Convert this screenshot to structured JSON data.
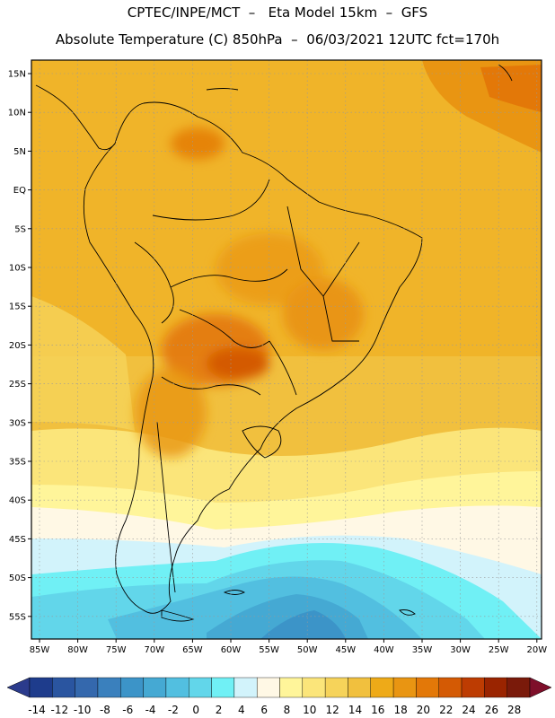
{
  "title_line1": "CPTEC/INPE/MCT  –   Eta Model 15km  –  GFS",
  "title_line2": "Absolute Temperature (C) 850hPa  –  06/03/2021 12UTC fct=170h",
  "lat_labels": [
    "15N",
    "10N",
    "5N",
    "EQ",
    "5S",
    "10S",
    "15S",
    "20S",
    "25S",
    "30S",
    "35S",
    "40S",
    "45S",
    "50S",
    "55S"
  ],
  "lon_labels": [
    "85W",
    "80W",
    "75W",
    "70W",
    "65W",
    "60W",
    "55W",
    "50W",
    "45W",
    "40W",
    "35W",
    "30W",
    "25W",
    "20W"
  ],
  "colorbar": {
    "labels": [
      "-14",
      "-12",
      "-10",
      "-8",
      "-6",
      "-4",
      "-2",
      "0",
      "2",
      "4",
      "6",
      "8",
      "10",
      "12",
      "14",
      "16",
      "18",
      "20",
      "22",
      "24",
      "26",
      "28"
    ],
    "colors": [
      "#1e3c8c",
      "#2a55a0",
      "#3468ad",
      "#3a80bd",
      "#3c94c8",
      "#45a9d3",
      "#52bfe0",
      "#62d6ea",
      "#70f0f5",
      "#d2f3fb",
      "#fff8e5",
      "#fff59a",
      "#fbe57a",
      "#f6d35a",
      "#f1c03e",
      "#eeaa18",
      "#e99512",
      "#e37808",
      "#d45a04",
      "#bd3c02",
      "#9a2400",
      "#7a1a0a"
    ],
    "low_color": "#2b3b8c",
    "high_color": "#7e0f2a"
  }
}
